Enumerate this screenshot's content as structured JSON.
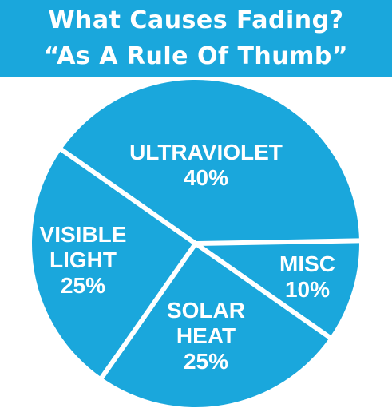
{
  "header": {
    "title_line1": "What Causes Fading?",
    "title_line2": "“As A Rule Of Thumb”"
  },
  "colors": {
    "pie_fill": "#1aa7dc",
    "divider": "#ffffff",
    "banner": "#1aa7dc"
  },
  "chart_data": {
    "type": "pie",
    "title": "What Causes Fading?",
    "subtitle": "“As A Rule Of Thumb”",
    "slices": [
      {
        "label": "ULTRAVIOLET",
        "value": 40,
        "value_label": "40%"
      },
      {
        "label": "MISC",
        "value": 10,
        "value_label": "10%"
      },
      {
        "label": "SOLAR\nHEAT",
        "value": 25,
        "value_label": "25%"
      },
      {
        "label": "VISIBLE\nLIGHT",
        "value": 25,
        "value_label": "25%"
      }
    ],
    "legend": "none"
  }
}
